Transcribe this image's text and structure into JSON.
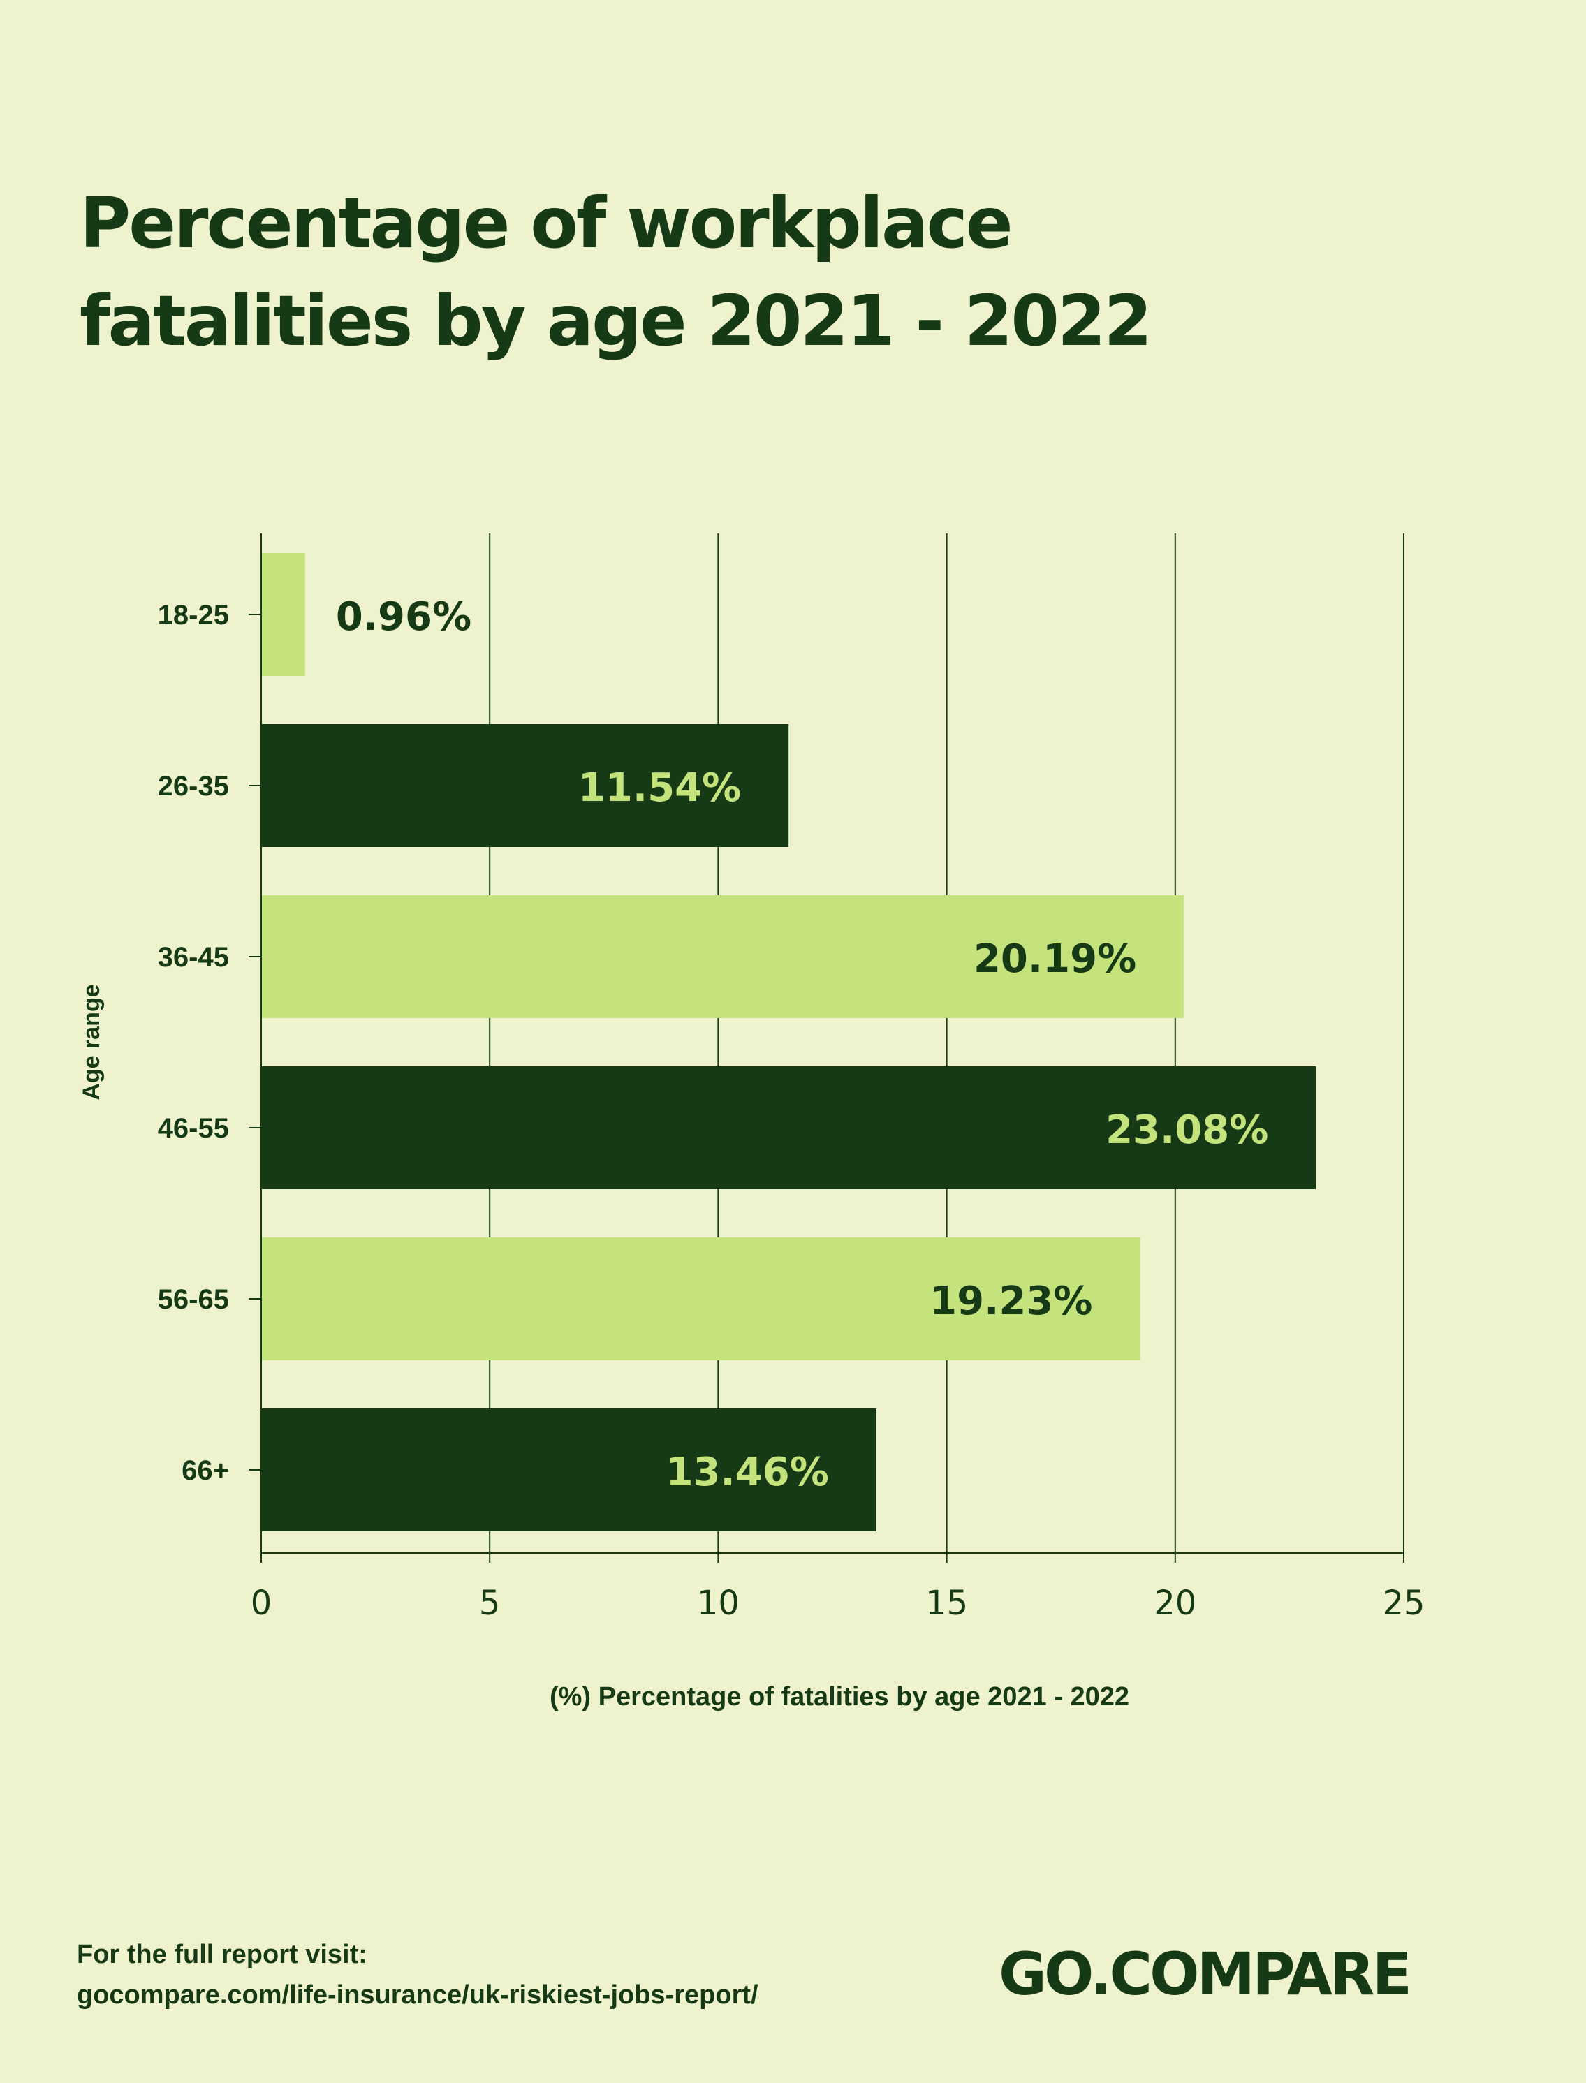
{
  "title_lines": [
    "Percentage of workplace",
    "fatalities by age 2021 - 2022"
  ],
  "footer": {
    "line1": "For  the full report visit:",
    "line2": "gocompare.com/life-insurance/uk-riskiest-jobs-report/"
  },
  "logo_text": "GO.COMPARE",
  "colors": {
    "background": "#eef3cd",
    "dark": "#163a16",
    "light": "#c5e37c"
  },
  "chart_data": {
    "type": "bar",
    "orientation": "horizontal",
    "title": "Percentage of workplace fatalities by age 2021 - 2022",
    "xlabel": "(%) Percentage of fatalities by age 2021 - 2022",
    "ylabel": "Age range",
    "categories": [
      "18-25",
      "26-35",
      "36-45",
      "46-55",
      "56-65",
      "66+"
    ],
    "values": [
      0.96,
      11.54,
      20.19,
      23.08,
      19.23,
      13.46
    ],
    "data_labels": [
      "0.96%",
      "11.54%",
      "20.19%",
      "23.08%",
      "19.23%",
      "13.46%"
    ],
    "bar_colors": [
      "#c5e37c",
      "#163a16",
      "#c5e37c",
      "#163a16",
      "#c5e37c",
      "#163a16"
    ],
    "label_colors": [
      "#163a16",
      "#c5e37c",
      "#163a16",
      "#c5e37c",
      "#163a16",
      "#c5e37c"
    ],
    "xlim": [
      0,
      25
    ],
    "xticks": [
      0,
      5,
      10,
      15,
      20,
      25
    ],
    "xtick_labels": [
      "0",
      "5",
      "10",
      "15",
      "20",
      "25"
    ],
    "grid": "vertical"
  }
}
